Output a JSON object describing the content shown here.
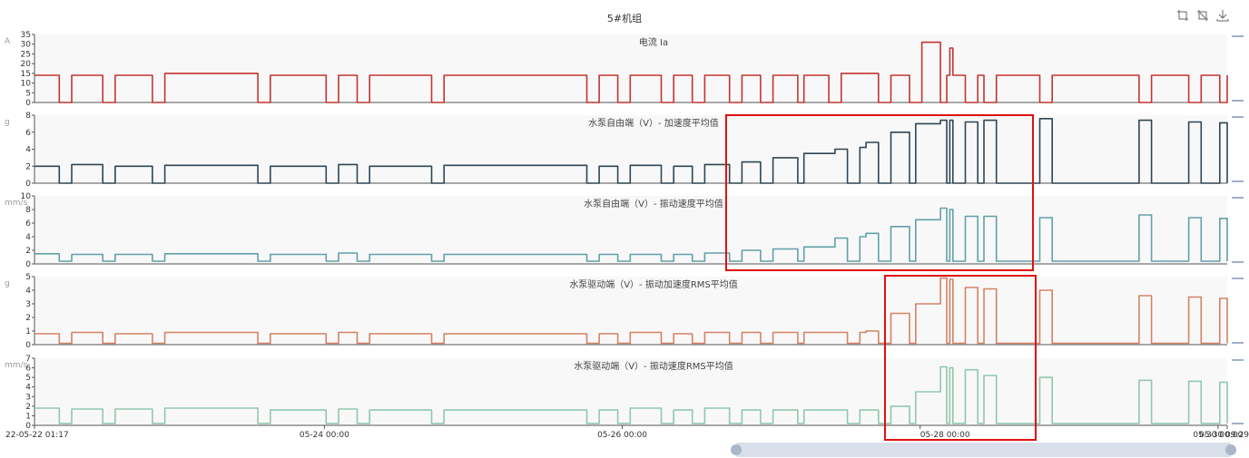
{
  "title": "5#机组",
  "toolbox": [
    {
      "name": "zoom-icon"
    },
    {
      "name": "zoom-reset-icon"
    },
    {
      "name": "download-icon"
    }
  ],
  "x_ticks": [
    "22-05-22 01:17",
    "05-24 00:00",
    "05-26 00:00",
    "05-28 00:00",
    "05-30 00:00",
    "05-30 09:29"
  ],
  "colors": {
    "current": "#c23531",
    "accel_free": "#2f4554",
    "vel_free": "#61a0a8",
    "accel_drive": "#d48265",
    "vel_drive": "#91c7ae",
    "highlight": "#e01010",
    "panel_bg": "#f8f8f8",
    "grid": "#e6e6e6",
    "slider_track": "#d8dfea",
    "slider_handle": "#a8b7cc"
  },
  "chart_data": [
    {
      "type": "line",
      "title": "电流 Ia",
      "ylabel": "A",
      "ylim": [
        0,
        35
      ],
      "yticks": [
        "0",
        "5",
        "10",
        "15",
        "20",
        "25",
        "30",
        "35"
      ],
      "color": "#c23531",
      "x_unit": "hours since 05-22 01:17",
      "x": [
        0,
        4,
        6,
        11,
        13,
        19,
        21,
        36,
        38,
        47,
        49,
        52,
        54,
        64,
        66,
        89,
        91,
        94,
        96,
        101,
        103,
        106,
        108,
        112,
        114,
        117,
        119,
        123,
        124,
        128,
        130,
        136,
        138,
        141,
        143,
        146,
        147,
        147.5,
        148,
        150,
        152,
        153,
        155,
        162,
        164,
        178,
        180,
        186,
        188,
        191,
        192.2
      ],
      "y": [
        14,
        0,
        14,
        0,
        14,
        0,
        15,
        0,
        14,
        0,
        14,
        0,
        14,
        0,
        14,
        0,
        14,
        0,
        14,
        0,
        14,
        0,
        14,
        0,
        14,
        0,
        14,
        0,
        14,
        0,
        15,
        0,
        14,
        0,
        31,
        0,
        14,
        28,
        14,
        0,
        14,
        0,
        14,
        0,
        14,
        0,
        14,
        0,
        14,
        0,
        14
      ]
    },
    {
      "type": "line",
      "title": "水泵自由端（V）- 加速度平均值",
      "ylabel": "g",
      "ylim": [
        0,
        8
      ],
      "yticks": [
        "0",
        "2",
        "4",
        "6",
        "8"
      ],
      "color": "#2f4554",
      "x": [
        0,
        4,
        6,
        11,
        13,
        19,
        21,
        36,
        38,
        47,
        49,
        52,
        54,
        64,
        66,
        89,
        91,
        94,
        96,
        101,
        103,
        106,
        108,
        112,
        114,
        117,
        119,
        123,
        124,
        129,
        131,
        133,
        134,
        136,
        138,
        141,
        142,
        146,
        147,
        147.5,
        148,
        150,
        152,
        153,
        155,
        162,
        164,
        178,
        180,
        186,
        188,
        191,
        192.2
      ],
      "y": [
        2,
        0,
        2.2,
        0,
        2,
        0,
        2.1,
        0,
        2,
        0,
        2.2,
        0,
        2,
        0,
        2.1,
        0,
        2,
        0,
        2.1,
        0,
        2,
        0,
        2.2,
        0,
        2.5,
        0,
        3,
        0,
        3.5,
        4,
        0,
        4.2,
        4.8,
        0,
        6,
        0,
        7,
        7.4,
        0,
        7.4,
        0,
        7.2,
        0,
        7.4,
        0,
        7.6,
        0,
        7.4,
        0,
        7.2,
        0,
        7.1,
        0
      ]
    },
    {
      "type": "line",
      "title": "水泵自由端（V）- 振动速度平均值",
      "ylabel": "mm/s",
      "ylim": [
        0,
        10
      ],
      "yticks": [
        "0",
        "2",
        "4",
        "6",
        "8",
        "10"
      ],
      "color": "#61a0a8",
      "x": [
        0,
        4,
        6,
        11,
        13,
        19,
        21,
        36,
        38,
        47,
        49,
        52,
        54,
        64,
        66,
        89,
        91,
        94,
        96,
        101,
        103,
        106,
        108,
        112,
        114,
        117,
        119,
        123,
        124,
        129,
        131,
        133,
        134,
        136,
        138,
        141,
        142,
        146,
        147,
        147.5,
        148,
        150,
        152,
        153,
        155,
        162,
        164,
        178,
        180,
        186,
        188,
        191,
        192.2
      ],
      "y": [
        1.5,
        0.4,
        1.4,
        0.4,
        1.4,
        0.4,
        1.5,
        0.4,
        1.4,
        0.4,
        1.6,
        0.4,
        1.4,
        0.4,
        1.4,
        0.4,
        1.4,
        0.4,
        1.4,
        0.4,
        1.4,
        0.4,
        1.6,
        0.4,
        2,
        0.4,
        2.2,
        0.4,
        2.5,
        3.8,
        0.4,
        4,
        4.5,
        0.4,
        5.5,
        0.4,
        6.5,
        8.2,
        0.4,
        8,
        0.4,
        7,
        0.4,
        7,
        0.4,
        6.8,
        0.4,
        7.2,
        0.4,
        6.8,
        0.4,
        6.7,
        0.4
      ]
    },
    {
      "type": "line",
      "title": "水泵驱动端（V）- 振动加速度RMS平均值",
      "ylabel": "g",
      "ylim": [
        0,
        5
      ],
      "yticks": [
        "0",
        "1",
        "2",
        "3",
        "4",
        "5"
      ],
      "color": "#d48265",
      "x": [
        0,
        4,
        6,
        11,
        13,
        19,
        21,
        36,
        38,
        47,
        49,
        52,
        54,
        64,
        66,
        89,
        91,
        94,
        96,
        101,
        103,
        106,
        108,
        112,
        114,
        117,
        119,
        123,
        124,
        129,
        131,
        133,
        134,
        136,
        138,
        141,
        142,
        146,
        147,
        147.5,
        148,
        150,
        152,
        153,
        155,
        162,
        164,
        178,
        180,
        186,
        188,
        191,
        192.2
      ],
      "y": [
        0.8,
        0.1,
        0.9,
        0.1,
        0.8,
        0.1,
        0.9,
        0.1,
        0.8,
        0.1,
        0.9,
        0.1,
        0.8,
        0.1,
        0.8,
        0.1,
        0.8,
        0.1,
        0.9,
        0.1,
        0.8,
        0.1,
        0.9,
        0.1,
        0.9,
        0.1,
        0.9,
        0.1,
        0.9,
        0.9,
        0.1,
        0.9,
        1,
        0.1,
        2.3,
        0.1,
        3,
        4.9,
        0.1,
        4.8,
        0.1,
        4.2,
        0.1,
        4.1,
        0.1,
        4,
        0.1,
        3.6,
        0.1,
        3.5,
        0.1,
        3.4,
        0.1
      ]
    },
    {
      "type": "line",
      "title": "水泵驱动端（V）- 振动速度RMS平均值",
      "ylabel": "mm/s",
      "ylim": [
        0,
        7
      ],
      "yticks": [
        "0",
        "1",
        "2",
        "3",
        "4",
        "5",
        "6",
        "7"
      ],
      "color": "#91c7ae",
      "x": [
        0,
        4,
        6,
        11,
        13,
        19,
        21,
        36,
        38,
        47,
        49,
        52,
        54,
        64,
        66,
        89,
        91,
        94,
        96,
        101,
        103,
        106,
        108,
        112,
        114,
        117,
        119,
        123,
        124,
        129,
        131,
        133,
        134,
        136,
        138,
        141,
        142,
        146,
        147,
        147.5,
        148,
        150,
        152,
        153,
        155,
        162,
        164,
        178,
        180,
        186,
        188,
        191,
        192.2
      ],
      "y": [
        1.8,
        0.2,
        1.7,
        0.2,
        1.7,
        0.2,
        1.8,
        0.2,
        1.6,
        0.2,
        1.7,
        0.2,
        1.6,
        0.2,
        1.6,
        0.2,
        1.6,
        0.2,
        1.8,
        0.2,
        1.6,
        0.2,
        1.8,
        0.2,
        1.6,
        0.2,
        1.6,
        0.2,
        1.6,
        1.6,
        0.2,
        1.6,
        1.6,
        0.2,
        2,
        0.2,
        3.5,
        6.1,
        0.2,
        6,
        0.2,
        5.8,
        0.2,
        5.2,
        0.2,
        5,
        0.2,
        4.7,
        0.2,
        4.6,
        0.2,
        4.5,
        0.2
      ]
    }
  ]
}
